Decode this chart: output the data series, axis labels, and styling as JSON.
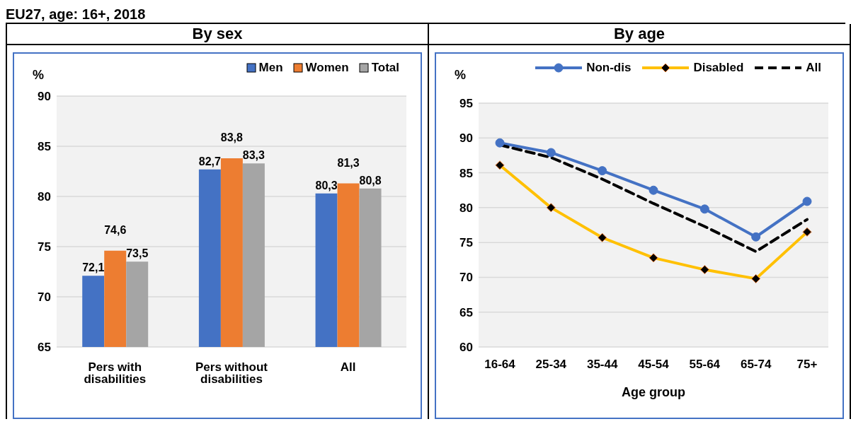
{
  "chart_data": [
    {
      "type": "bar",
      "title": "By sex",
      "annotations": [
        "EU27, age: 16+, 2018"
      ],
      "ylabel": "%",
      "categories": [
        "Pers with disabilities",
        "Pers without disabilities",
        "All"
      ],
      "series": [
        {
          "name": "Men",
          "color": "#4472c4",
          "values": [
            72.1,
            82.7,
            80.3
          ],
          "value_labels": [
            "72,1",
            "82,7",
            "80,3"
          ]
        },
        {
          "name": "Women",
          "color": "#ed7d31",
          "values": [
            74.6,
            83.8,
            81.3
          ],
          "value_labels": [
            "74,6",
            "83,8",
            "81,3"
          ]
        },
        {
          "name": "Total",
          "color": "#a5a5a5",
          "values": [
            73.5,
            83.3,
            80.8
          ],
          "value_labels": [
            "73,5",
            "83,3",
            "80,8"
          ]
        }
      ],
      "ylim": [
        65,
        90
      ],
      "yticks": [
        65,
        70,
        75,
        80,
        85,
        90
      ],
      "grid": "y",
      "legend": "top"
    },
    {
      "type": "line",
      "title": "By age",
      "ylabel": "%",
      "xlabel": "Age group",
      "categories": [
        "16-64",
        "25-34",
        "35-44",
        "45-54",
        "55-64",
        "65-74",
        "75+"
      ],
      "series": [
        {
          "name": "Non-dis",
          "color": "#4472c4",
          "marker": "circle",
          "values": [
            89.3,
            87.9,
            85.3,
            82.5,
            79.8,
            75.8,
            80.9
          ]
        },
        {
          "name": "Disabled",
          "color": "#ffc000",
          "marker": "diamond",
          "values": [
            86.1,
            80.0,
            75.7,
            72.8,
            71.1,
            69.8,
            76.5
          ]
        },
        {
          "name": "All",
          "color": "#000000",
          "marker": "none",
          "line_style": "dashed",
          "values": [
            89.0,
            87.2,
            84.1,
            80.6,
            77.3,
            73.7,
            78.3
          ]
        }
      ],
      "ylim": [
        60,
        95
      ],
      "yticks": [
        60,
        65,
        70,
        75,
        80,
        85,
        90,
        95
      ],
      "grid": "y",
      "legend": "top right"
    }
  ]
}
